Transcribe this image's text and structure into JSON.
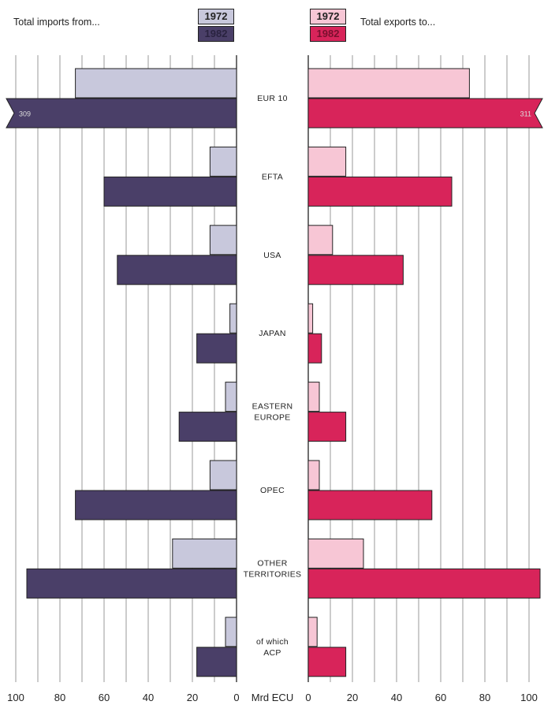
{
  "header": {
    "imports_title": "Total imports from...",
    "exports_title": "Total exports to...",
    "legend_year_1": "1972",
    "legend_year_2": "1982"
  },
  "colors": {
    "imports_1972": "#c8c8dc",
    "imports_1982": "#4a3f68",
    "exports_1972": "#f7c6d5",
    "exports_1982": "#d8245a",
    "grid": "#999999"
  },
  "chart_data": {
    "type": "bar",
    "xlabel": "Mrd ECU",
    "xlim": [
      0,
      100
    ],
    "ticks": [
      100,
      80,
      60,
      40,
      20,
      0
    ],
    "categories": [
      [
        "EUR 10"
      ],
      [
        "EFTA"
      ],
      [
        "USA"
      ],
      [
        "JAPAN"
      ],
      [
        "EASTERN",
        "EUROPE"
      ],
      [
        "OPEC"
      ],
      [
        "OTHER",
        "TERRITORIES"
      ],
      [
        "of which",
        "ACP"
      ]
    ],
    "imports": {
      "series": [
        {
          "name": "1972",
          "values": [
            73,
            12,
            12,
            3,
            5,
            12,
            29,
            5
          ]
        },
        {
          "name": "1982",
          "values": [
            309,
            60,
            54,
            18,
            26,
            73,
            95,
            18
          ]
        }
      ],
      "overflow_labels": [
        "309",
        "",
        "",
        "",
        "",
        "",
        "",
        ""
      ]
    },
    "exports": {
      "series": [
        {
          "name": "1972",
          "values": [
            73,
            17,
            11,
            2,
            5,
            5,
            25,
            4
          ]
        },
        {
          "name": "1982",
          "values": [
            311,
            65,
            43,
            6,
            17,
            56,
            105,
            17
          ]
        }
      ],
      "overflow_labels": [
        "311",
        "",
        "",
        "",
        "",
        "",
        "",
        ""
      ]
    }
  }
}
